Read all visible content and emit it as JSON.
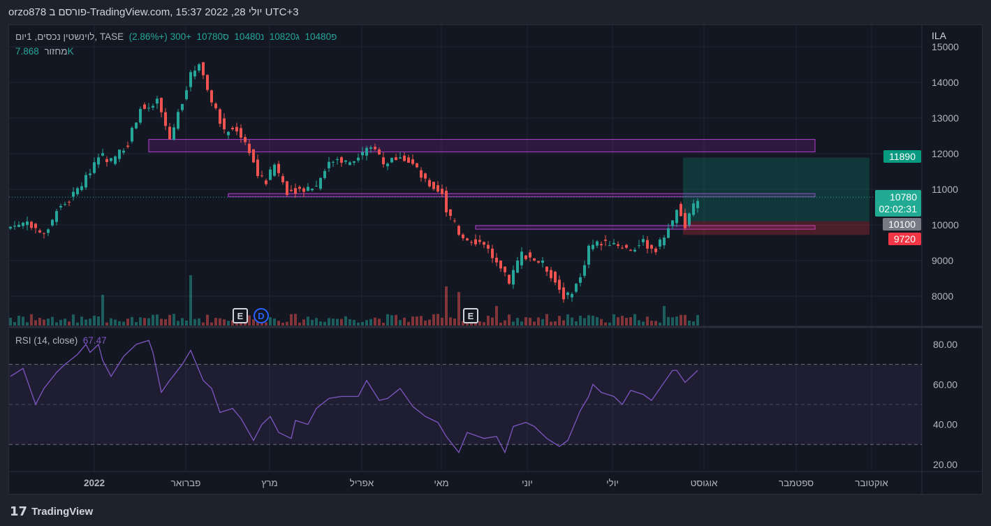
{
  "header": {
    "title": "orzo878 פורסם ב-TradingView.com, 15:37 2022 ,28 יולי UTC+3"
  },
  "legend": {
    "symbol": "לוינשטין נכסים, 1יום, TASE",
    "open": "פ10480",
    "high": "ג10820",
    "low": "נ10480",
    "close": "ס10780",
    "change": "+300 (+2.86%)",
    "volume_label": "מחזור",
    "volume_value": "7.868K"
  },
  "currency": "ILA",
  "rsi_legend": {
    "label": "RSI (14, close)",
    "value": "67.47"
  },
  "price_labels": {
    "target": "11890",
    "last": "10780",
    "countdown": "02:02:31",
    "entry": "10100",
    "stop": "9720"
  },
  "events": [
    "E",
    "D",
    "E"
  ],
  "footer": {
    "brand": "TradingView"
  },
  "colors": {
    "up": "#26a69a",
    "down": "#ef5350",
    "rsi": "#7e57c2",
    "zone": "#9c27b0"
  },
  "chart_data": {
    "type": "candlestick",
    "price_axis": {
      "ticks": [
        8000,
        9000,
        10000,
        11000,
        12000,
        13000,
        14000,
        15000
      ],
      "range": [
        7300,
        15300
      ]
    },
    "rsi_axis": {
      "ticks": [
        20,
        40,
        60,
        80
      ],
      "bands": [
        30,
        50,
        70
      ],
      "range": [
        15,
        88
      ]
    },
    "time_axis": [
      "2022",
      "פברואר",
      "מרץ",
      "אפריל",
      "מאי",
      "יוני",
      "יולי",
      "אוגוסט",
      "ספטמבר",
      "אוקטובר"
    ],
    "candle_count": 165,
    "close_keypoints": [
      [
        0,
        9950
      ],
      [
        4,
        10100
      ],
      [
        8,
        9700
      ],
      [
        11,
        10400
      ],
      [
        14,
        10700
      ],
      [
        18,
        11300
      ],
      [
        21,
        12000
      ],
      [
        24,
        11800
      ],
      [
        28,
        12300
      ],
      [
        31,
        13300
      ],
      [
        33,
        13200
      ],
      [
        35,
        13500
      ],
      [
        38,
        12400
      ],
      [
        41,
        13500
      ],
      [
        43,
        14200
      ],
      [
        45,
        14600
      ],
      [
        47,
        13800
      ],
      [
        49,
        13200
      ],
      [
        51,
        12600
      ],
      [
        54,
        12700
      ],
      [
        57,
        12100
      ],
      [
        59,
        11400
      ],
      [
        61,
        11200
      ],
      [
        63,
        11700
      ],
      [
        66,
        10950
      ],
      [
        69,
        11000
      ],
      [
        73,
        11100
      ],
      [
        75,
        11600
      ],
      [
        78,
        11900
      ],
      [
        81,
        11700
      ],
      [
        84,
        12000
      ],
      [
        87,
        12200
      ],
      [
        89,
        11700
      ],
      [
        93,
        12000
      ],
      [
        96,
        11700
      ],
      [
        99,
        11200
      ],
      [
        103,
        10900
      ],
      [
        104,
        10400
      ],
      [
        107,
        9800
      ],
      [
        109,
        9600
      ],
      [
        113,
        9500
      ],
      [
        116,
        8900
      ],
      [
        119,
        8400
      ],
      [
        122,
        9200
      ],
      [
        124,
        9100
      ],
      [
        127,
        8900
      ],
      [
        129,
        8600
      ],
      [
        132,
        8000
      ],
      [
        133,
        8000
      ],
      [
        136,
        8500
      ],
      [
        138,
        9400
      ],
      [
        141,
        9500
      ],
      [
        144,
        9500
      ],
      [
        148,
        9300
      ],
      [
        151,
        9500
      ],
      [
        154,
        9300
      ],
      [
        158,
        10100
      ],
      [
        159,
        10500
      ],
      [
        161,
        10000
      ],
      [
        164,
        10780
      ]
    ],
    "rsi_keypoints": [
      [
        0,
        64
      ],
      [
        3,
        68
      ],
      [
        6,
        50
      ],
      [
        8,
        58
      ],
      [
        11,
        66
      ],
      [
        13,
        70
      ],
      [
        16,
        75
      ],
      [
        18,
        80
      ],
      [
        19,
        76
      ],
      [
        21,
        80
      ],
      [
        22,
        72
      ],
      [
        24,
        64
      ],
      [
        27,
        74
      ],
      [
        30,
        80
      ],
      [
        33,
        82
      ],
      [
        34,
        76
      ],
      [
        36,
        56
      ],
      [
        38,
        62
      ],
      [
        41,
        70
      ],
      [
        43,
        77
      ],
      [
        46,
        62
      ],
      [
        48,
        58
      ],
      [
        50,
        46
      ],
      [
        53,
        48
      ],
      [
        55,
        43
      ],
      [
        58,
        32
      ],
      [
        60,
        40
      ],
      [
        62,
        44
      ],
      [
        64,
        36
      ],
      [
        67,
        33
      ],
      [
        68,
        42
      ],
      [
        71,
        40
      ],
      [
        73,
        48
      ],
      [
        76,
        53
      ],
      [
        79,
        54
      ],
      [
        83,
        54
      ],
      [
        85,
        62
      ],
      [
        88,
        52
      ],
      [
        90,
        53
      ],
      [
        93,
        58
      ],
      [
        96,
        49
      ],
      [
        99,
        44
      ],
      [
        102,
        41
      ],
      [
        104,
        34
      ],
      [
        107,
        26
      ],
      [
        109,
        36
      ],
      [
        113,
        33
      ],
      [
        116,
        34
      ],
      [
        118,
        26
      ],
      [
        120,
        39
      ],
      [
        123,
        41
      ],
      [
        125,
        39
      ],
      [
        128,
        33
      ],
      [
        131,
        29
      ],
      [
        133,
        32
      ],
      [
        136,
        47
      ],
      [
        138,
        54
      ],
      [
        139,
        60
      ],
      [
        141,
        56
      ],
      [
        144,
        54
      ],
      [
        146,
        50
      ],
      [
        148,
        57
      ],
      [
        151,
        55
      ],
      [
        153,
        52
      ],
      [
        155,
        58
      ],
      [
        158,
        67
      ],
      [
        159,
        67
      ],
      [
        161,
        61
      ],
      [
        164,
        67
      ]
    ],
    "volume_spikes": [
      [
        22,
        5.5
      ],
      [
        43,
        9
      ],
      [
        104,
        7
      ],
      [
        107,
        6
      ],
      [
        156,
        3.5
      ],
      [
        116,
        3.5
      ]
    ],
    "zones": [
      {
        "from": 33,
        "to": 192,
        "top": 12400,
        "bottom": 12050
      },
      {
        "from": 52,
        "to": 192,
        "top": 10880,
        "bottom": 10790
      },
      {
        "from": 111,
        "to": 192,
        "top": 9980,
        "bottom": 9880
      }
    ],
    "position": {
      "from": 160.5,
      "to": 205,
      "entry": 10100,
      "target": 11890,
      "stop": 9720
    }
  }
}
